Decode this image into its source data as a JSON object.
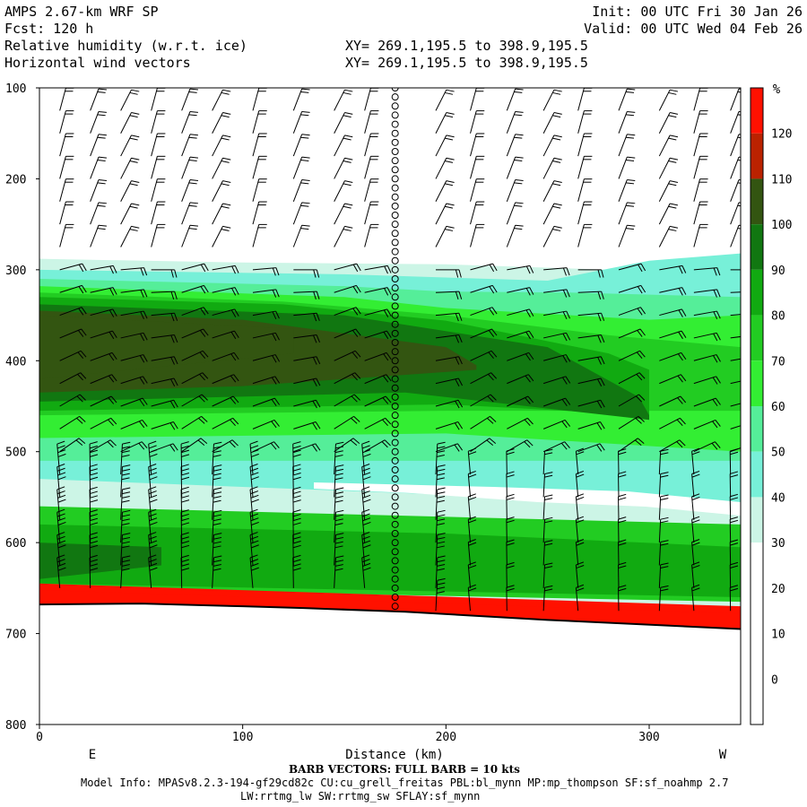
{
  "header": {
    "title": "AMPS 2.67-km WRF SP",
    "fcst": "Fcst: 120 h",
    "field1": "Relative humidity (w.r.t. ice)",
    "field2": "Horizontal wind vectors",
    "init": "Init: 00 UTC Fri 30 Jan 26",
    "valid": "Valid: 00 UTC Wed 04 Feb 26",
    "xy1": "XY= 269.1,195.5 to 398.9,195.5",
    "xy2": "XY= 269.1,195.5 to 398.9,195.5"
  },
  "footer": {
    "barb_note": "BARB VECTORS:  FULL BARB = 10 kts",
    "model_info": "Model Info: MPASv8.2.3-194-gf29cd82c CU:cu_grell_freitas PBL:bl_mynn MP:mp_thompson SF:sf_noahmp 2.7",
    "model_info2": "LW:rrtmg_lw SW:rrtmg_sw SFLAY:sf_mynn"
  },
  "chart_data": {
    "type": "heatmap",
    "title": "Relative humidity (w.r.t. ice)",
    "xlabel": "Distance (km)",
    "ylabel": "",
    "xlim": [
      0,
      345
    ],
    "ylim": [
      800,
      100
    ],
    "x_ticks": [
      0,
      100,
      200,
      300
    ],
    "y_ticks": [
      100,
      200,
      300,
      400,
      500,
      600,
      700,
      800
    ],
    "x_side_labels": {
      "left": "E",
      "right": "W"
    },
    "colorbar": {
      "unit": "%",
      "levels": [
        0,
        10,
        20,
        30,
        40,
        50,
        60,
        70,
        80,
        90,
        100,
        110,
        120
      ],
      "colors": [
        "#ffffff",
        "#ffffff",
        "#ffffff",
        "#ffffff",
        "#ccf5e6",
        "#77f0d8",
        "#55ee99",
        "#33ee33",
        "#22cc22",
        "#11aa11",
        "#117711",
        "#335511",
        "#bb2200",
        "#ff1100"
      ]
    },
    "rh_layers": [
      {
        "level": 30,
        "top": [
          [
            0,
            288
          ],
          [
            100,
            292
          ],
          [
            200,
            294
          ],
          [
            280,
            300
          ],
          [
            345,
            295
          ]
        ],
        "bottom": [
          [
            0,
            672
          ],
          [
            345,
            695
          ]
        ]
      },
      {
        "level": 40,
        "top": [
          [
            0,
            300
          ],
          [
            150,
            305
          ],
          [
            250,
            312
          ],
          [
            300,
            290
          ],
          [
            345,
            282
          ]
        ],
        "bottom": [
          [
            0,
            530
          ],
          [
            345,
            560
          ]
        ]
      },
      {
        "level": 50,
        "top": [
          [
            0,
            310
          ],
          [
            150,
            318
          ],
          [
            200,
            324
          ],
          [
            260,
            325
          ],
          [
            345,
            330
          ]
        ],
        "bottom": [
          [
            0,
            510
          ],
          [
            345,
            510
          ]
        ]
      },
      {
        "level": 60,
        "top": [
          [
            0,
            318
          ],
          [
            150,
            330
          ],
          [
            200,
            342
          ],
          [
            300,
            355
          ],
          [
            345,
            350
          ]
        ],
        "bottom": [
          [
            0,
            485
          ],
          [
            200,
            480
          ],
          [
            345,
            500
          ]
        ]
      },
      {
        "level": 70,
        "top": [
          [
            0,
            325
          ],
          [
            120,
            335
          ],
          [
            200,
            350
          ],
          [
            280,
            372
          ],
          [
            345,
            385
          ]
        ],
        "bottom": [
          [
            0,
            460
          ],
          [
            200,
            455
          ],
          [
            345,
            455
          ]
        ]
      },
      {
        "level": 80,
        "top": [
          [
            0,
            330
          ],
          [
            120,
            338
          ],
          [
            200,
            356
          ],
          [
            280,
            392
          ],
          [
            300,
            410
          ]
        ],
        "bottom": [
          [
            0,
            455
          ],
          [
            200,
            448
          ],
          [
            300,
            460
          ]
        ]
      },
      {
        "level": 90,
        "top": [
          [
            0,
            338
          ],
          [
            150,
            350
          ],
          [
            250,
            385
          ],
          [
            295,
            440
          ],
          [
            300,
            460
          ]
        ],
        "bottom": [
          [
            0,
            445
          ],
          [
            180,
            435
          ],
          [
            260,
            455
          ],
          [
            300,
            465
          ]
        ]
      },
      {
        "level": 100,
        "top": [
          [
            0,
            345
          ],
          [
            100,
            355
          ],
          [
            200,
            385
          ],
          [
            215,
            405
          ]
        ],
        "bottom": [
          [
            0,
            435
          ],
          [
            100,
            428
          ],
          [
            215,
            410
          ]
        ]
      },
      {
        "level": 105,
        "top": [
          [
            0,
            350
          ],
          [
            125,
            365
          ]
        ],
        "bottom": [
          [
            0,
            420
          ],
          [
            125,
            392
          ]
        ]
      },
      {
        "level": 70,
        "top": [
          [
            0,
            560
          ],
          [
            345,
            580
          ]
        ],
        "bottom": [
          [
            0,
            650
          ],
          [
            345,
            665
          ]
        ]
      },
      {
        "level": 80,
        "top": [
          [
            0,
            580
          ],
          [
            100,
            585
          ],
          [
            200,
            590
          ],
          [
            345,
            605
          ]
        ],
        "bottom": [
          [
            0,
            645
          ],
          [
            345,
            660
          ]
        ]
      },
      {
        "level": 90,
        "top": [
          [
            0,
            600
          ],
          [
            60,
            605
          ]
        ],
        "bottom": [
          [
            0,
            640
          ],
          [
            60,
            625
          ]
        ]
      },
      {
        "level": 120,
        "top": [
          [
            0,
            645
          ],
          [
            345,
            670
          ]
        ],
        "bottom": [
          [
            0,
            672
          ],
          [
            345,
            695
          ]
        ]
      },
      {
        "level": 125,
        "top": [
          [
            0,
            652
          ],
          [
            345,
            678
          ]
        ],
        "bottom": [
          [
            0,
            672
          ],
          [
            345,
            695
          ]
        ]
      }
    ],
    "terrain": [
      [
        0,
        668
      ],
      [
        50,
        667
      ],
      [
        100,
        670
      ],
      [
        130,
        672
      ],
      [
        180,
        676
      ],
      [
        250,
        685
      ],
      [
        345,
        695
      ]
    ],
    "wind_barbs": {
      "x_positions": [
        10,
        25,
        40,
        55,
        70,
        85,
        105,
        125,
        145,
        160,
        175,
        195,
        212,
        230,
        248,
        265,
        285,
        305,
        322,
        340
      ],
      "description": "barbs shown on every level from 100 to surface; calm circles along x = 172"
    }
  }
}
